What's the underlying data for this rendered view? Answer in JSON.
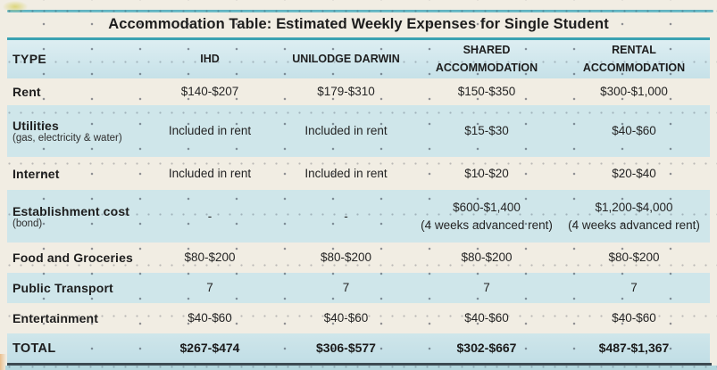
{
  "chart_data": {
    "type": "table",
    "title": "Accommodation Table: Estimated Weekly Expenses for Single Student",
    "columns": [
      "TYPE",
      "IHD",
      "UNILODGE DARWIN",
      "SHARED ACCOMMODATION",
      "RENTAL ACCOMMODATION"
    ],
    "rows": [
      {
        "label": "Rent",
        "sublabel": "",
        "values": [
          "$140-$207",
          "$179-$310",
          "$150-$350",
          "$300-$1,000"
        ],
        "emphasis": false
      },
      {
        "label": "Utilities",
        "sublabel": "(gas, electricity & water)",
        "values": [
          "Included in rent",
          "Included in rent",
          "$15-$30",
          "$40-$60"
        ],
        "emphasis": false
      },
      {
        "label": "Internet",
        "sublabel": "",
        "values": [
          "Included in rent",
          "Included in rent",
          "$10-$20",
          "$20-$40"
        ],
        "emphasis": false
      },
      {
        "label": "Establishment cost",
        "sublabel": "(bond)",
        "values": [
          "-",
          "-",
          "$600-$1,400\n(4 weeks advanced rent)",
          "$1,200-$4,000\n(4 weeks advanced rent)"
        ],
        "emphasis": false
      },
      {
        "label": "Food and Groceries",
        "sublabel": "",
        "values": [
          "$80-$200",
          "$80-$200",
          "$80-$200",
          "$80-$200"
        ],
        "emphasis": false
      },
      {
        "label": "Public Transport",
        "sublabel": "",
        "values": [
          "7",
          "7",
          "7",
          "7"
        ],
        "emphasis": false
      },
      {
        "label": "Entertainment",
        "sublabel": "",
        "values": [
          "$40-$60",
          "$40-$60",
          "$40-$60",
          "$40-$60"
        ],
        "emphasis": false
      },
      {
        "label": "TOTAL",
        "sublabel": "",
        "values": [
          "$267-$474",
          "$306-$577",
          "$302-$667",
          "$487-$1,367"
        ],
        "emphasis": true
      }
    ],
    "layout_hints": {
      "row_shading": "alternating cream and pale blue",
      "grid": "dotted paper background"
    }
  },
  "colors": {
    "page_bg": "#f1ede3",
    "row_blue": "#cfe6ea",
    "hdr_top": "#ddeef2",
    "hdr_bottom": "#c6e1e8",
    "teal": "#55aebc",
    "teal_dark": "#3aa2b2",
    "slate": "#3d4a52",
    "strip": "#b4d7de",
    "ink": "#1d1d1d"
  }
}
